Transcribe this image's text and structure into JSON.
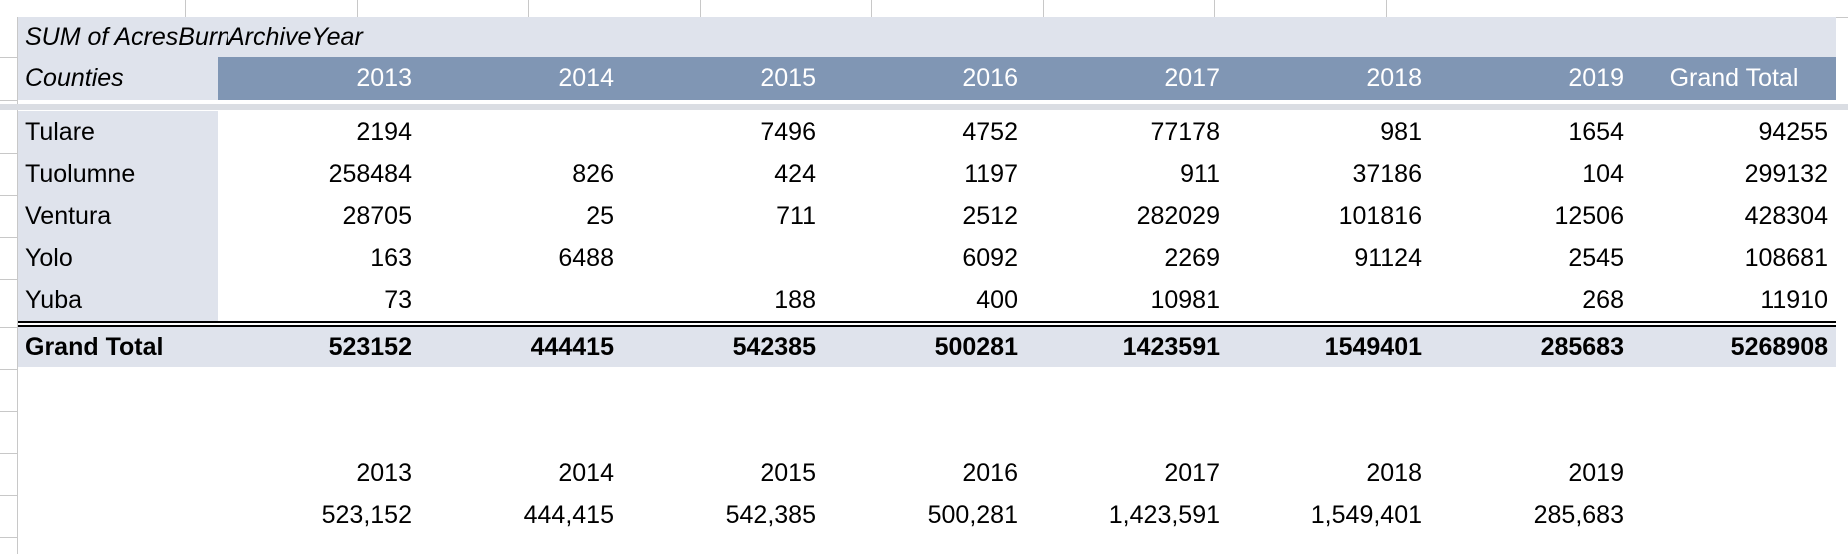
{
  "pivot": {
    "title_left": "SUM of AcresBurned",
    "title_right": "ArchiveYear",
    "row_header": "Counties",
    "years": [
      "2013",
      "2014",
      "2015",
      "2016",
      "2017",
      "2018",
      "2019"
    ],
    "grand_total_label": "Grand Total",
    "rows": [
      {
        "county": "Tulare",
        "values": [
          "2194",
          "",
          "7496",
          "4752",
          "77178",
          "981",
          "1654"
        ],
        "total": "94255"
      },
      {
        "county": "Tuolumne",
        "values": [
          "258484",
          "826",
          "424",
          "1197",
          "911",
          "37186",
          "104"
        ],
        "total": "299132"
      },
      {
        "county": "Ventura",
        "values": [
          "28705",
          "25",
          "711",
          "2512",
          "282029",
          "101816",
          "12506"
        ],
        "total": "428304"
      },
      {
        "county": "Yolo",
        "values": [
          "163",
          "6488",
          "",
          "6092",
          "2269",
          "91124",
          "2545"
        ],
        "total": "108681"
      },
      {
        "county": "Yuba",
        "values": [
          "73",
          "",
          "188",
          "400",
          "10981",
          "",
          "268"
        ],
        "total": "11910"
      }
    ],
    "grand_total_row": {
      "label": "Grand Total",
      "values": [
        "523152",
        "444415",
        "542385",
        "500281",
        "1423591",
        "1549401",
        "285683"
      ],
      "total": "5268908"
    }
  },
  "summary": {
    "years": [
      "2013",
      "2014",
      "2015",
      "2016",
      "2017",
      "2018",
      "2019"
    ],
    "values": [
      "523,152",
      "444,415",
      "542,385",
      "500,281",
      "1,423,591",
      "1,549,401",
      "285,683"
    ]
  },
  "colors": {
    "header_band": "#8096b4",
    "pivot_background": "#dfe3ec"
  }
}
